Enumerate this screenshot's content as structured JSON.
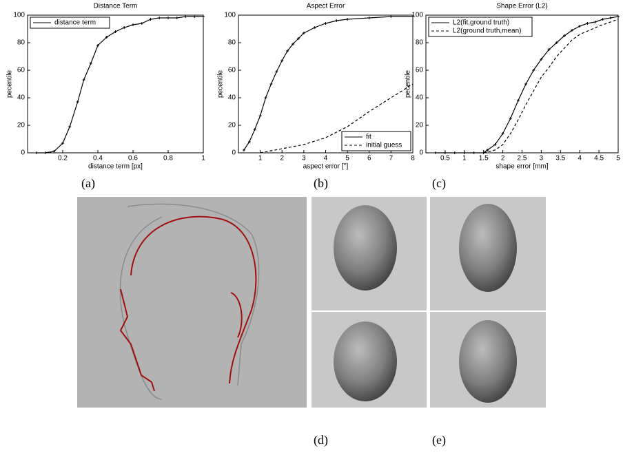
{
  "chart_data": [
    {
      "type": "line",
      "title": "Distance Term",
      "xlabel": "distance term [px]",
      "ylabel": "pecentile",
      "xlim": [
        0,
        1
      ],
      "xticks": [
        0.2,
        0.4,
        0.6,
        0.8,
        1
      ],
      "ylim": [
        0,
        100
      ],
      "yticks": [
        0,
        20,
        40,
        60,
        80,
        100
      ],
      "legend": "upper left",
      "series": [
        {
          "name": "distance term",
          "color": "#000",
          "style": "solid",
          "marker": "+",
          "x": [
            0.05,
            0.1,
            0.15,
            0.2,
            0.24,
            0.285,
            0.32,
            0.36,
            0.4,
            0.45,
            0.5,
            0.55,
            0.6,
            0.65,
            0.7,
            0.75,
            0.8,
            0.85,
            0.9,
            0.95,
            1
          ],
          "values": [
            0,
            0,
            1,
            7,
            19,
            37,
            53,
            65,
            78,
            84,
            88,
            91,
            93,
            94,
            97,
            98,
            98,
            98,
            99,
            99,
            99
          ]
        }
      ]
    },
    {
      "type": "line",
      "title": "Aspect Error",
      "xlabel": "aspect error [°]",
      "ylabel": "pecentile",
      "xlim": [
        0,
        8
      ],
      "xticks": [
        1,
        2,
        3,
        4,
        5,
        6,
        7,
        8
      ],
      "ylim": [
        0,
        100
      ],
      "yticks": [
        0,
        20,
        40,
        60,
        80,
        100
      ],
      "legend": "lower right",
      "series": [
        {
          "name": "fit",
          "color": "#000",
          "style": "solid",
          "marker": "+",
          "x": [
            0.25,
            0.5,
            0.75,
            1,
            1.25,
            1.5,
            1.75,
            2,
            2.25,
            2.5,
            2.75,
            3,
            3.5,
            4,
            4.5,
            5,
            6,
            7,
            8
          ],
          "values": [
            2,
            8,
            17,
            27,
            40,
            50,
            59,
            67,
            74,
            79,
            83,
            87,
            91,
            94,
            96,
            97,
            98,
            99,
            99
          ]
        },
        {
          "name": "initial guess",
          "color": "#000",
          "style": "dashed",
          "marker": "none",
          "x": [
            1,
            2,
            3,
            4,
            5,
            6,
            7,
            8
          ],
          "values": [
            0,
            3,
            6,
            11,
            19,
            30,
            40,
            50
          ]
        }
      ]
    },
    {
      "type": "line",
      "title": "Shape Error (L2)",
      "xlabel": "shape error [mm]",
      "ylabel": "pecentile",
      "xlim": [
        0,
        5
      ],
      "xticks": [
        0.5,
        1,
        1.5,
        2,
        2.5,
        3,
        3.5,
        4,
        4.5,
        5
      ],
      "ylim": [
        0,
        100
      ],
      "yticks": [
        0,
        20,
        40,
        60,
        80,
        100
      ],
      "legend": "upper left",
      "series": [
        {
          "name": "L2(fit,ground truth)",
          "color": "#000",
          "style": "solid",
          "marker": "+",
          "x": [
            0.25,
            0.5,
            0.75,
            1,
            1.25,
            1.5,
            1.6,
            1.8,
            2,
            2.2,
            2.4,
            2.6,
            2.8,
            3,
            3.2,
            3.4,
            3.6,
            3.8,
            4,
            4.2,
            4.4,
            4.6,
            4.8,
            5
          ],
          "values": [
            0,
            0,
            0,
            0,
            0,
            0,
            2,
            6,
            14,
            25,
            38,
            50,
            60,
            68,
            75,
            80,
            85,
            89,
            92,
            94,
            95,
            97,
            98,
            99
          ]
        },
        {
          "name": "L2(ground truth,mean)",
          "color": "#000",
          "style": "dashed",
          "marker": "none",
          "x": [
            1.5,
            1.8,
            2,
            2.2,
            2.4,
            2.6,
            2.8,
            3,
            3.2,
            3.4,
            3.6,
            3.8,
            4,
            4.5,
            5
          ],
          "values": [
            0,
            2,
            6,
            14,
            24,
            35,
            45,
            55,
            62,
            70,
            76,
            82,
            86,
            92,
            97
          ]
        }
      ]
    }
  ],
  "captions": [
    "(a)",
    "(b)",
    "(c)",
    "(d)",
    "(e)"
  ]
}
